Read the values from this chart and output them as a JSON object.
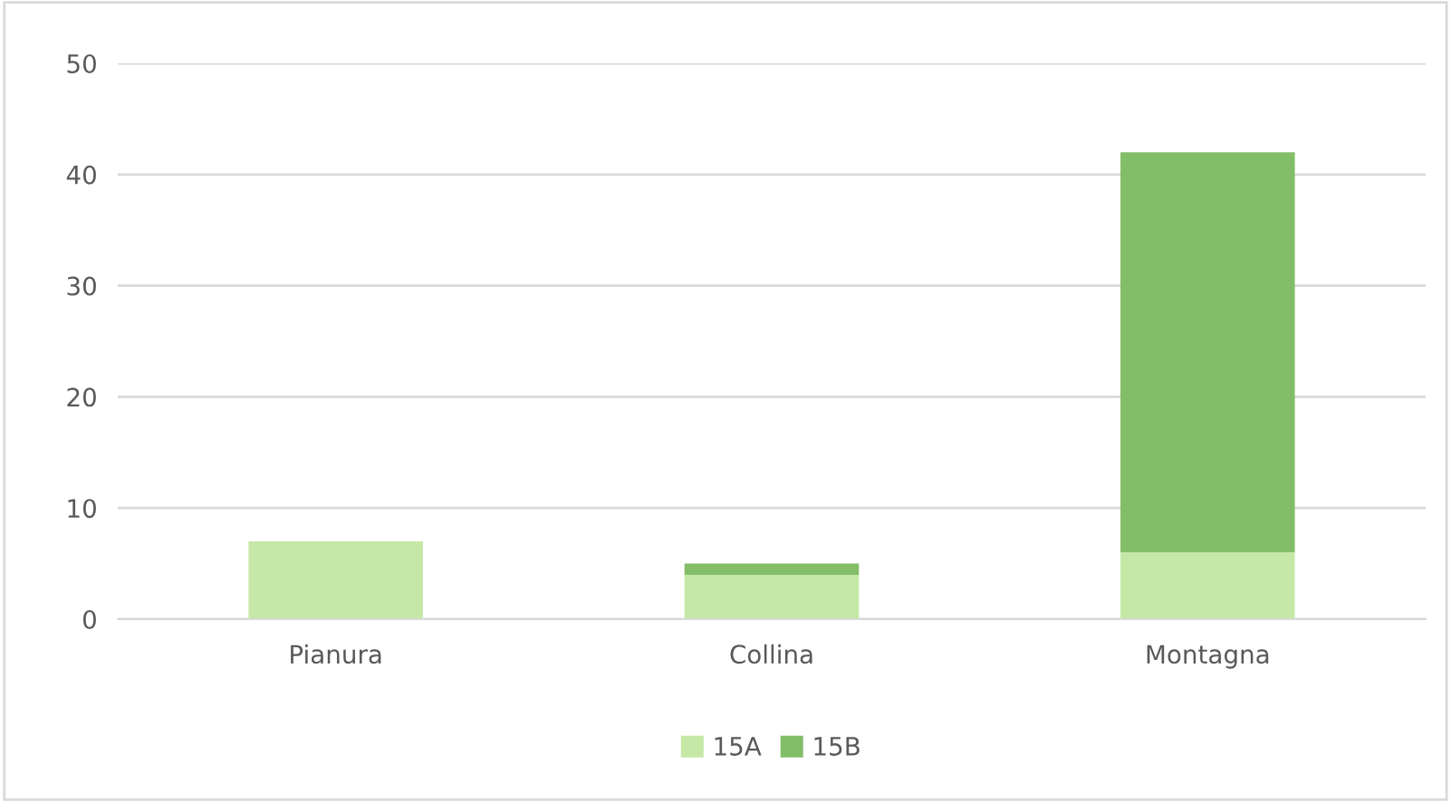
{
  "chart_data": {
    "type": "bar",
    "stacked": true,
    "categories": [
      "Pianura",
      "Collina",
      "Montagna"
    ],
    "series": [
      {
        "name": "15A",
        "color": "#c5e8a7",
        "values": [
          7,
          4,
          6
        ]
      },
      {
        "name": "15B",
        "color": "#82bd67",
        "values": [
          null,
          1,
          36
        ]
      }
    ],
    "ylim": [
      0,
      50
    ],
    "yticks": [
      0,
      10,
      20,
      30,
      40,
      50
    ],
    "grid": "y",
    "legend": "bottom"
  }
}
